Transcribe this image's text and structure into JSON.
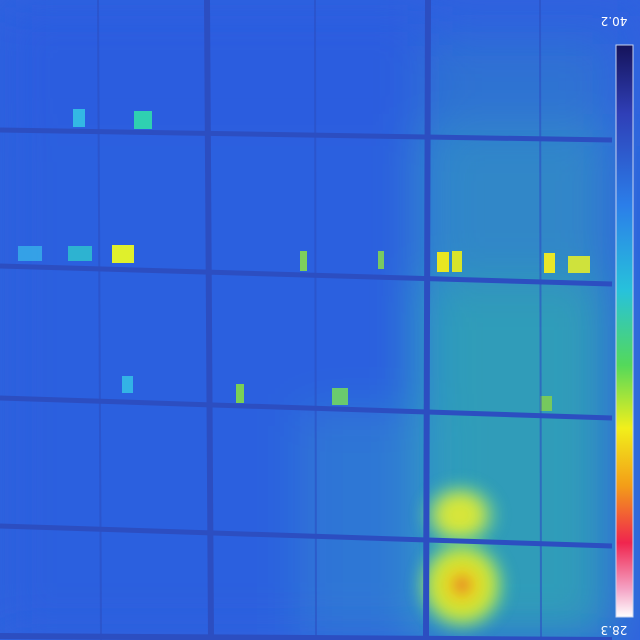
{
  "thermal_image": {
    "colorbar": {
      "max_label": "40.2",
      "min_label": "28.3"
    }
  }
}
